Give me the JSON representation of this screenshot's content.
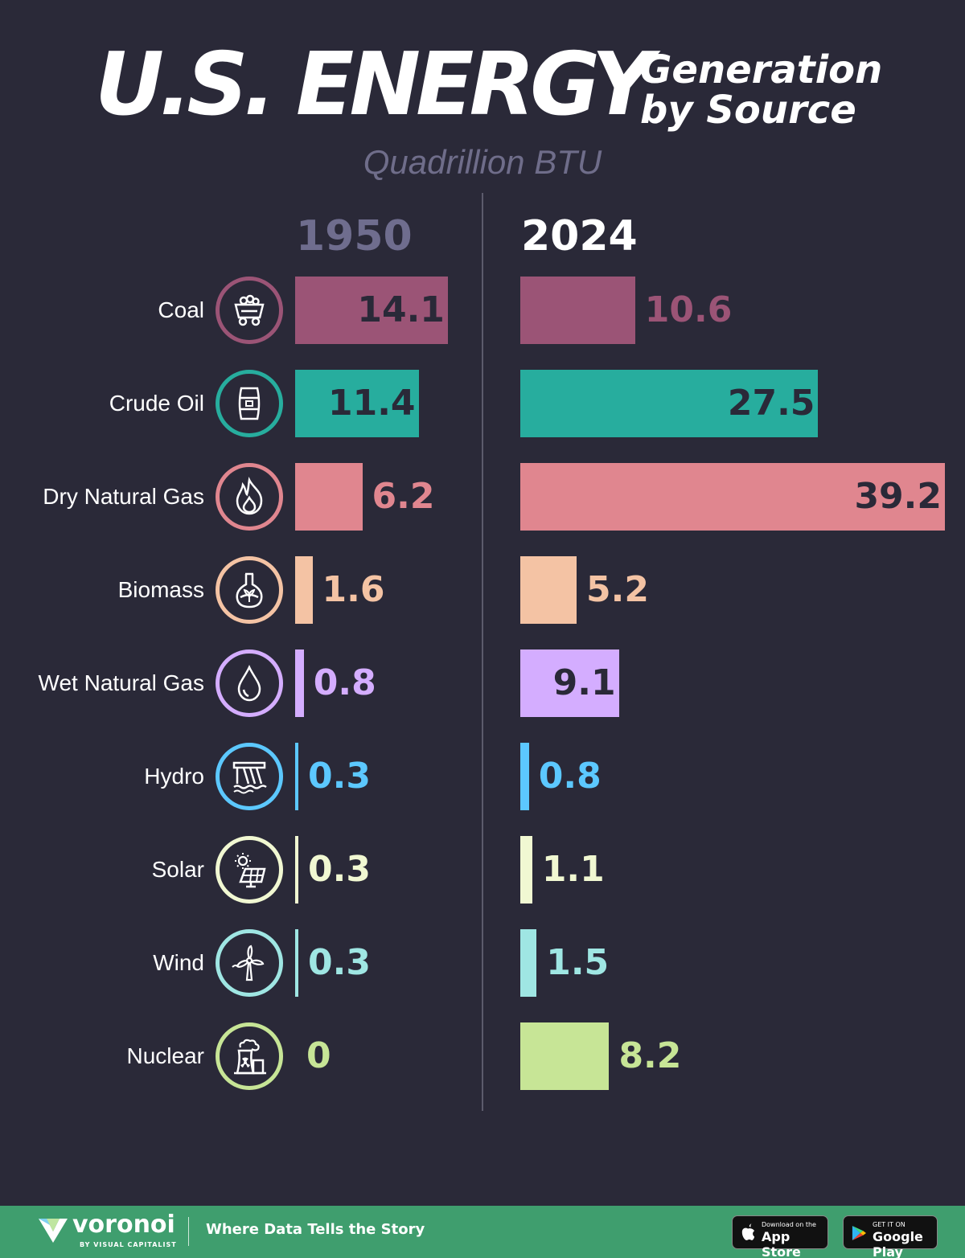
{
  "title": {
    "main": "U.S. ENERGY",
    "side_line1": "Generation",
    "side_line2": "by Source",
    "subtitle": "Quadrillion BTU"
  },
  "chart_data": {
    "type": "bar",
    "title": "U.S. Energy Generation by Source",
    "unit": "Quadrillion BTU",
    "categories": [
      "Coal",
      "Crude Oil",
      "Dry Natural Gas",
      "Biomass",
      "Wet Natural Gas",
      "Hydro",
      "Solar",
      "Wind",
      "Nuclear"
    ],
    "series": [
      {
        "name": "1950",
        "values": [
          14.1,
          11.4,
          6.2,
          1.6,
          0.8,
          0.3,
          0.3,
          0.3,
          0
        ]
      },
      {
        "name": "2024",
        "values": [
          10.6,
          27.5,
          39.2,
          5.2,
          9.1,
          0.8,
          1.1,
          1.5,
          8.2
        ]
      }
    ],
    "value_labels_1950": [
      "14.1",
      "11.4",
      "6.2",
      "1.6",
      "0.8",
      "0.3",
      "0.3",
      "0.3",
      "0"
    ],
    "value_labels_2024": [
      "10.6",
      "27.5",
      "39.2",
      "5.2",
      "9.1",
      "0.8",
      "1.1",
      "1.5",
      "8.2"
    ],
    "colors": [
      "#9b5476",
      "#27ad9e",
      "#e0868f",
      "#f4c3a4",
      "#d4adff",
      "#5cc8ff",
      "#f1f8d2",
      "#9fe6e3",
      "#c7e596"
    ],
    "icons": [
      "coal-cart-icon",
      "oil-barrel-icon",
      "flame-icon",
      "biomass-flask-icon",
      "droplet-icon",
      "dam-icon",
      "solar-panel-icon",
      "wind-turbine-icon",
      "nuclear-plant-icon"
    ],
    "xlim": [
      0,
      39.2
    ]
  },
  "footer": {
    "brand": "voronoi",
    "brand_sub": "BY VISUAL CAPITALIST",
    "tagline": "Where Data Tells the Story",
    "appstore_small": "Download on the",
    "appstore_big": "App Store",
    "googleplay_small": "GET IT ON",
    "googleplay_big": "Google Play"
  }
}
